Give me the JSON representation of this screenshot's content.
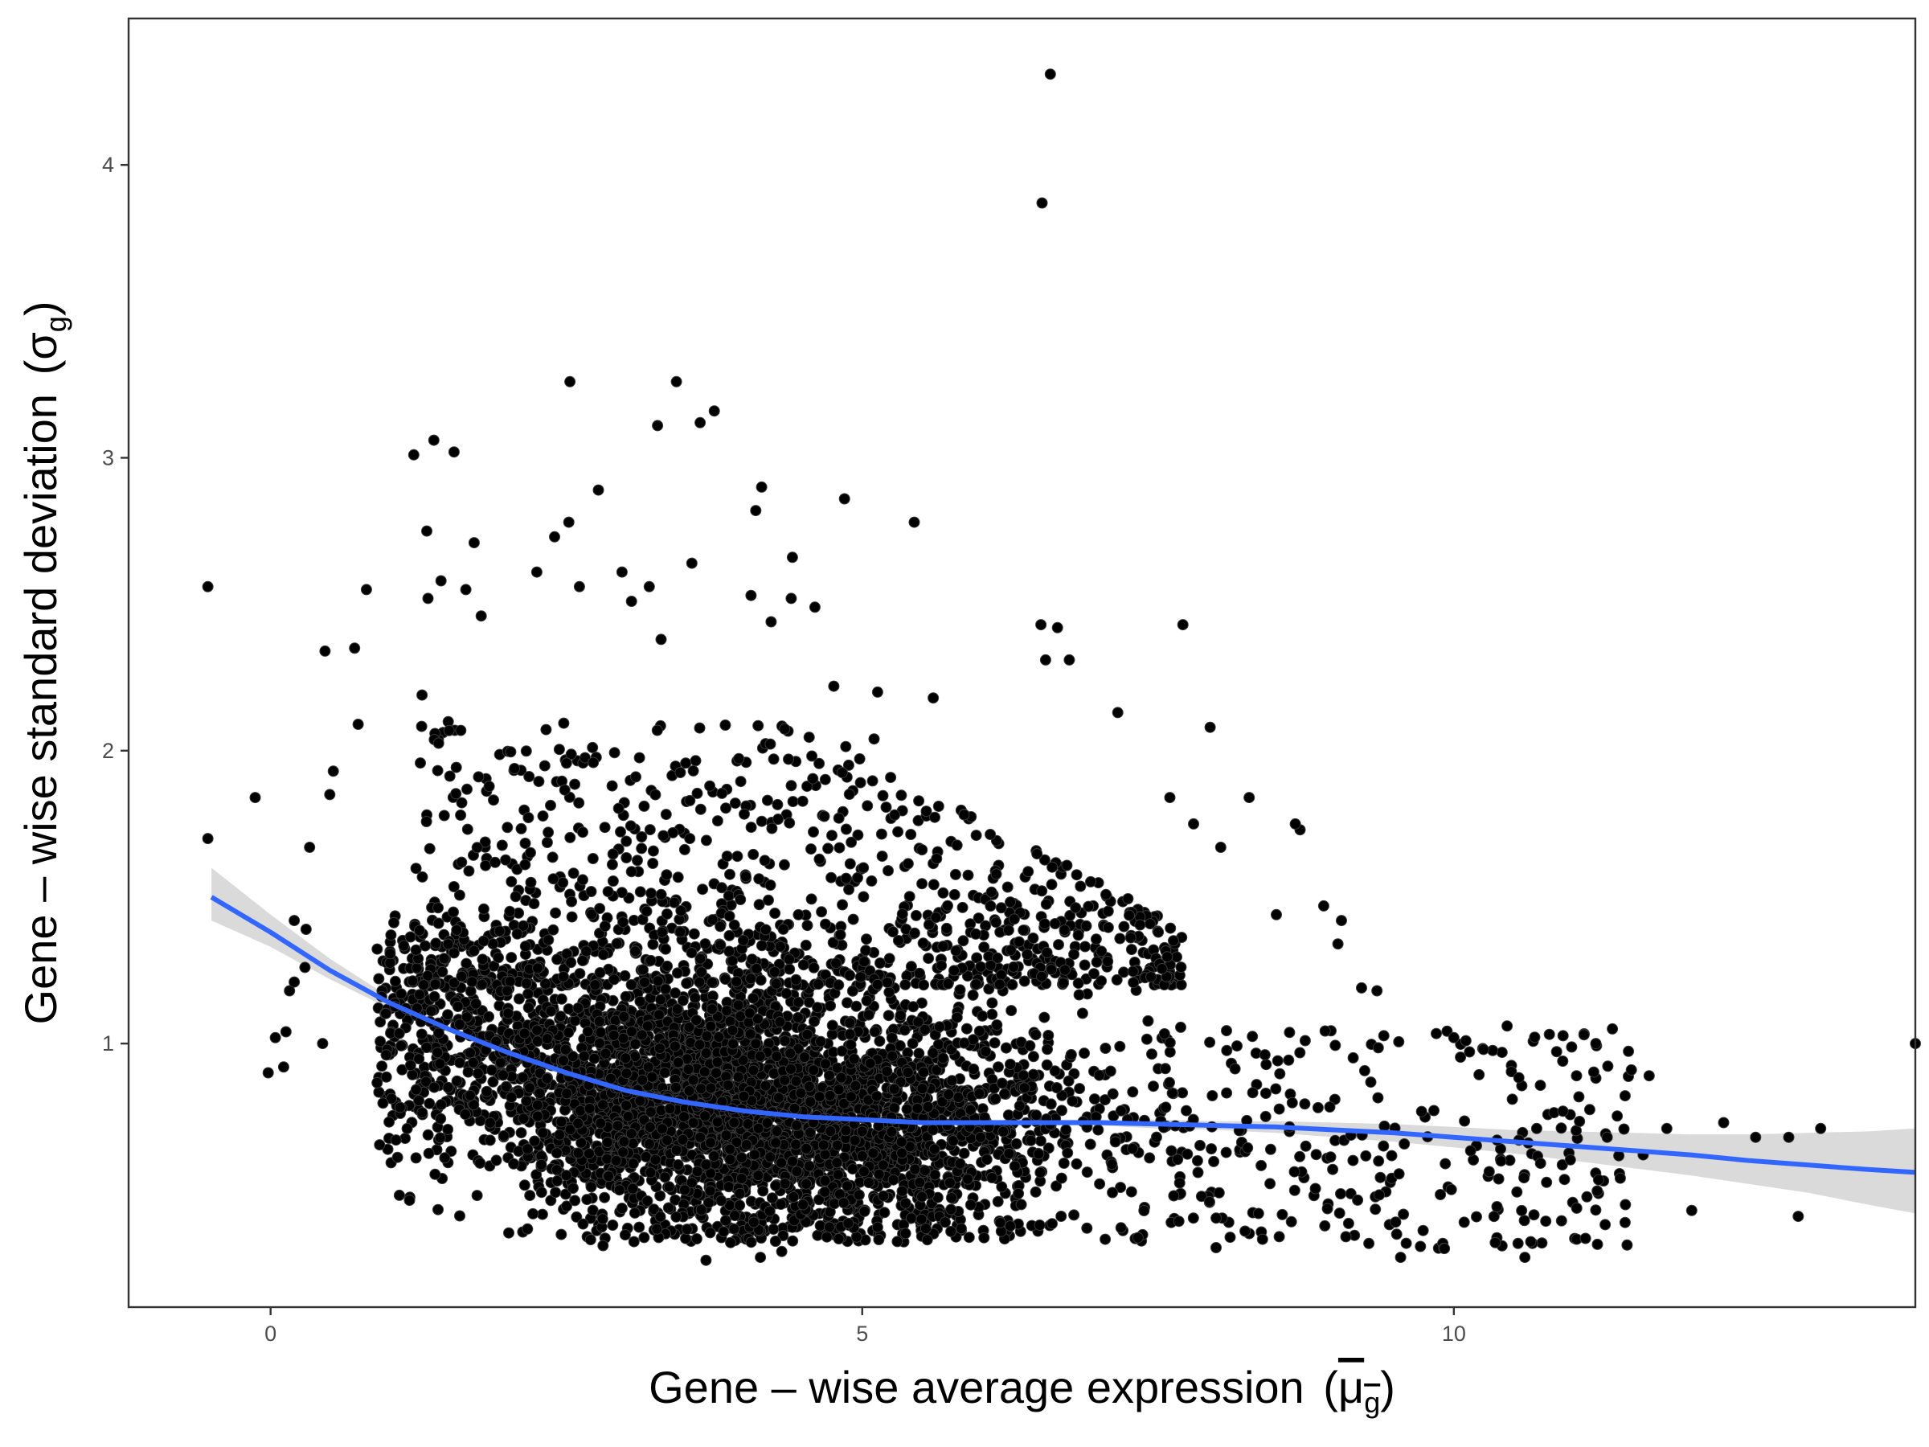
{
  "chart_data": {
    "type": "scatter",
    "title": "",
    "xlabel": "Gene – wise average expression",
    "xlabel_symbol": {
      "base": "μ",
      "subscript": "g",
      "overline": true
    },
    "ylabel": "Gene – wise standard deviation",
    "ylabel_symbol": {
      "base": "σ",
      "subscript": "g"
    },
    "xlim": [
      -1.2,
      13.9
    ],
    "ylim": [
      0.1,
      4.5
    ],
    "x_ticks": [
      0,
      5,
      10
    ],
    "x_tick_labels": [
      "0",
      "5",
      "10"
    ],
    "y_ticks": [
      1,
      2,
      3,
      4
    ],
    "y_tick_labels": [
      "1",
      "2",
      "3",
      "4"
    ],
    "grid": false,
    "legend": "none",
    "colors": {
      "points": "#000000",
      "smooth_line": "#3366ff",
      "confidence_band": "#d3d3d3",
      "axis_text": "#4d4d4d",
      "panel_border": "#333333"
    },
    "point_density_note": "dense cloud of several thousand genes between x≈1 and x≈8, y≈0.3 to 1.5",
    "series": [
      {
        "type": "scatter",
        "points": [
          [
            -0.53,
            2.56
          ],
          [
            -0.53,
            1.7
          ],
          [
            -0.13,
            1.84
          ],
          [
            0.33,
            1.67
          ],
          [
            0.46,
            2.34
          ],
          [
            0.71,
            2.35
          ],
          [
            0.74,
            2.09
          ],
          [
            0.81,
            2.55
          ],
          [
            0.5,
            1.85
          ],
          [
            0.53,
            1.93
          ],
          [
            1.21,
            3.01
          ],
          [
            1.38,
            3.06
          ],
          [
            1.55,
            3.02
          ],
          [
            1.32,
            2.75
          ],
          [
            1.72,
            2.71
          ],
          [
            1.28,
            2.19
          ],
          [
            1.44,
            2.58
          ],
          [
            1.65,
            2.55
          ],
          [
            1.78,
            2.46
          ],
          [
            1.33,
            2.52
          ],
          [
            2.25,
            2.61
          ],
          [
            2.4,
            2.73
          ],
          [
            2.52,
            2.78
          ],
          [
            2.53,
            3.26
          ],
          [
            2.77,
            2.89
          ],
          [
            3.27,
            3.11
          ],
          [
            3.43,
            3.26
          ],
          [
            3.75,
            3.16
          ],
          [
            3.63,
            3.12
          ],
          [
            3.56,
            2.64
          ],
          [
            2.61,
            2.56
          ],
          [
            2.97,
            2.61
          ],
          [
            3.05,
            2.51
          ],
          [
            3.2,
            2.56
          ],
          [
            3.3,
            2.38
          ],
          [
            4.15,
            2.9
          ],
          [
            4.1,
            2.82
          ],
          [
            4.06,
            2.53
          ],
          [
            4.41,
            2.66
          ],
          [
            4.23,
            2.44
          ],
          [
            4.4,
            2.52
          ],
          [
            4.6,
            2.49
          ],
          [
            4.85,
            2.86
          ],
          [
            5.44,
            2.78
          ],
          [
            4.76,
            2.22
          ],
          [
            5.13,
            2.2
          ],
          [
            6.51,
            2.43
          ],
          [
            6.65,
            2.42
          ],
          [
            6.75,
            2.31
          ],
          [
            6.55,
            2.31
          ],
          [
            7.71,
            2.43
          ],
          [
            7.94,
            2.08
          ],
          [
            7.16,
            2.13
          ],
          [
            7.6,
            1.84
          ],
          [
            7.8,
            1.75
          ],
          [
            8.03,
            1.67
          ],
          [
            8.27,
            1.84
          ],
          [
            8.7,
            1.73
          ],
          [
            8.66,
            1.75
          ],
          [
            8.5,
            1.44
          ],
          [
            8.9,
            1.47
          ],
          [
            9.05,
            1.42
          ],
          [
            9.22,
            1.19
          ],
          [
            9.35,
            1.18
          ],
          [
            9.02,
            1.34
          ],
          [
            6.59,
            4.31
          ],
          [
            6.52,
            3.87
          ],
          [
            5.6,
            2.18
          ],
          [
            5.1,
            2.04
          ],
          [
            10.0,
            1.02
          ],
          [
            10.25,
            0.98
          ],
          [
            10.45,
            1.06
          ],
          [
            11.1,
            1.03
          ],
          [
            11.2,
            1.0
          ],
          [
            11.34,
            1.05
          ],
          [
            10.92,
            0.94
          ],
          [
            11.5,
            0.91
          ],
          [
            11.65,
            0.89
          ],
          [
            11.8,
            0.71
          ],
          [
            12.28,
            0.73
          ],
          [
            12.55,
            0.68
          ],
          [
            12.83,
            0.68
          ],
          [
            13.1,
            0.71
          ],
          [
            12.01,
            0.43
          ],
          [
            12.91,
            0.41
          ],
          [
            13.9,
            1.0
          ],
          [
            11.45,
            0.45
          ],
          [
            11.6,
            0.62
          ],
          [
            10.6,
            0.27
          ],
          [
            9.92,
            0.3
          ],
          [
            9.55,
            0.27
          ],
          [
            10.35,
            0.32
          ],
          [
            10.55,
            0.67
          ],
          [
            10.7,
            0.71
          ],
          [
            2.0,
            1.18
          ],
          [
            3.0,
            0.95
          ],
          [
            4.0,
            0.82
          ],
          [
            5.0,
            0.7
          ],
          [
            6.0,
            0.68
          ],
          [
            2.5,
            0.55
          ],
          [
            3.5,
            0.5
          ],
          [
            4.5,
            0.45
          ],
          [
            5.5,
            0.4
          ],
          [
            6.5,
            0.38
          ],
          [
            1.5,
            0.85
          ],
          [
            1.8,
            1.35
          ],
          [
            2.2,
            1.55
          ],
          [
            3.8,
            1.4
          ],
          [
            4.8,
            1.2
          ],
          [
            3.68,
            0.26
          ],
          [
            4.14,
            0.27
          ],
          [
            4.32,
            0.29
          ],
          [
            2.81,
            0.31
          ],
          [
            5.55,
            0.33
          ],
          [
            -0.02,
            0.9
          ],
          [
            0.04,
            1.02
          ],
          [
            0.11,
            0.92
          ],
          [
            0.13,
            1.04
          ],
          [
            0.16,
            1.18
          ],
          [
            0.2,
            1.21
          ],
          [
            0.2,
            1.42
          ],
          [
            0.29,
            1.26
          ],
          [
            0.3,
            1.39
          ],
          [
            0.44,
            1.0
          ]
        ]
      },
      {
        "type": "line",
        "name": "",
        "method": "loess",
        "x": [
          -0.5,
          0,
          0.5,
          1,
          1.5,
          2,
          2.5,
          3,
          3.5,
          4,
          4.5,
          5,
          5.5,
          6,
          6.5,
          7,
          7.5,
          8,
          8.5,
          9,
          9.5,
          10,
          10.5,
          11,
          11.5,
          12,
          12.5,
          13,
          13.5,
          13.9
        ],
        "y": [
          1.5,
          1.38,
          1.25,
          1.14,
          1.05,
          0.97,
          0.9,
          0.84,
          0.8,
          0.77,
          0.75,
          0.74,
          0.73,
          0.73,
          0.73,
          0.73,
          0.725,
          0.72,
          0.715,
          0.705,
          0.695,
          0.68,
          0.665,
          0.65,
          0.635,
          0.62,
          0.6,
          0.585,
          0.57,
          0.56
        ],
        "ci_lower": [
          1.42,
          1.33,
          1.22,
          1.12,
          1.04,
          0.96,
          0.89,
          0.83,
          0.79,
          0.76,
          0.74,
          0.73,
          0.72,
          0.72,
          0.72,
          0.72,
          0.71,
          0.705,
          0.695,
          0.68,
          0.665,
          0.645,
          0.625,
          0.6,
          0.575,
          0.55,
          0.52,
          0.49,
          0.45,
          0.42
        ],
        "ci_upper": [
          1.6,
          1.44,
          1.29,
          1.16,
          1.06,
          0.98,
          0.91,
          0.85,
          0.81,
          0.78,
          0.76,
          0.75,
          0.74,
          0.74,
          0.74,
          0.74,
          0.74,
          0.735,
          0.735,
          0.73,
          0.725,
          0.715,
          0.705,
          0.7,
          0.695,
          0.69,
          0.69,
          0.695,
          0.7,
          0.71
        ]
      }
    ]
  }
}
